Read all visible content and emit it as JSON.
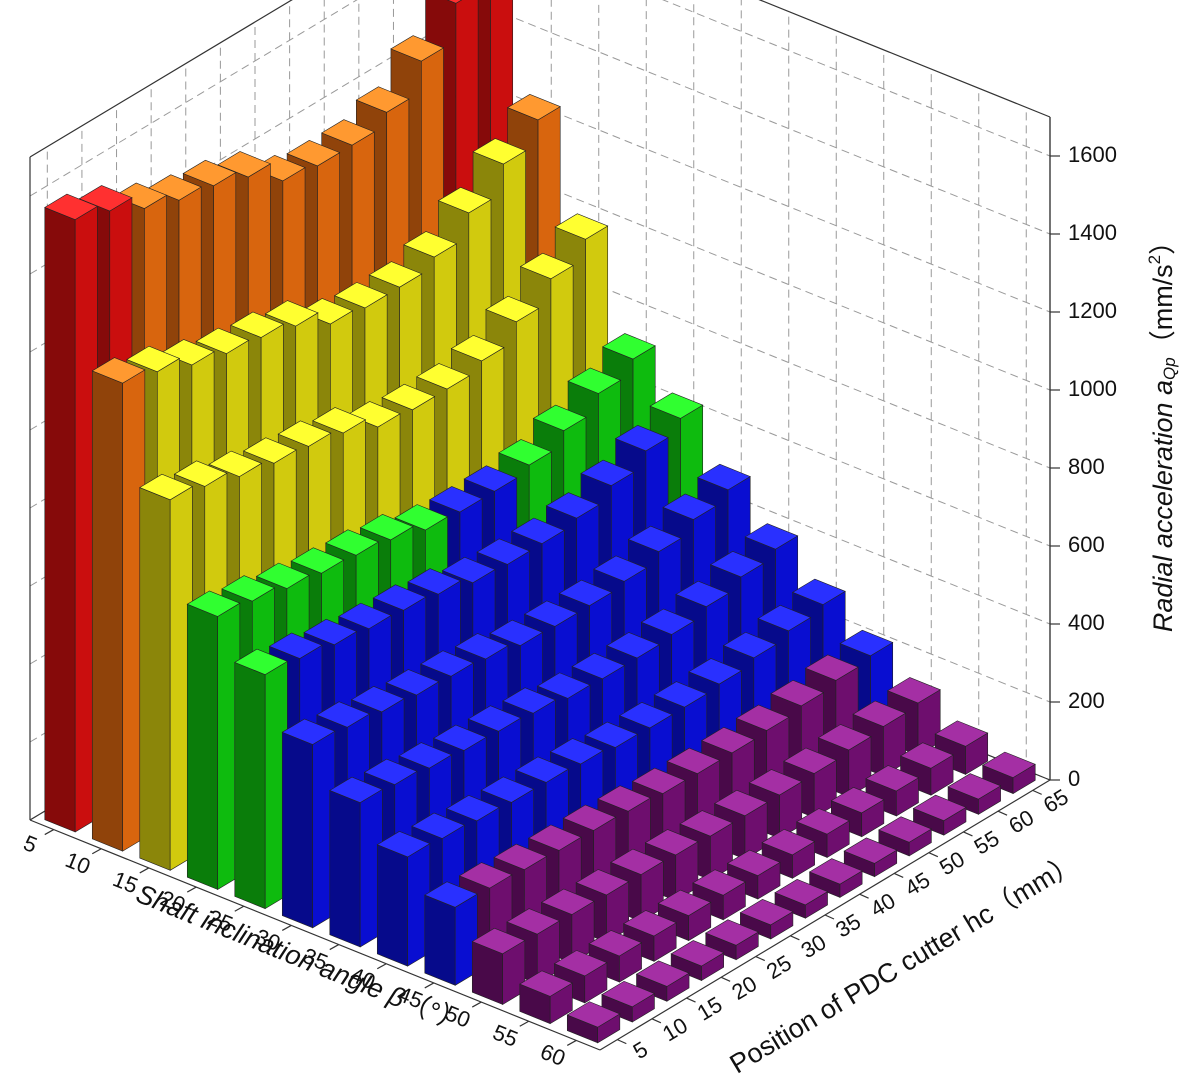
{
  "chart_data": {
    "type": "bar3d",
    "x_label": [
      "Shaft inclination angle ",
      "β",
      "（°）"
    ],
    "y_label": "Position of PDC cutter hc（mm）",
    "z_label": [
      "Radial acceleration ",
      "a",
      "Qp",
      "（mm/s",
      "2",
      "）"
    ],
    "x": [
      5,
      10,
      15,
      20,
      25,
      30,
      35,
      40,
      45,
      50,
      55,
      60
    ],
    "y": [
      5,
      10,
      15,
      20,
      25,
      30,
      35,
      40,
      45,
      50,
      55,
      60,
      65
    ],
    "values": [
      [
        1570,
        1539,
        1492,
        1460,
        1444,
        1413,
        1350,
        1335,
        1335,
        1366,
        1444,
        1539,
        1617
      ],
      [
        1200,
        1176,
        1140,
        1116,
        1104,
        1080,
        1032,
        1020,
        1020,
        1044,
        1104,
        1176,
        1236
      ],
      [
        950,
        931,
        903,
        884,
        874,
        855,
        817,
        808,
        808,
        827,
        874,
        931,
        979
      ],
      [
        700,
        686,
        665,
        651,
        644,
        630,
        602,
        595,
        595,
        609,
        644,
        686,
        721
      ],
      [
        600,
        588,
        570,
        558,
        552,
        540,
        516,
        510,
        510,
        522,
        552,
        588,
        618
      ],
      [
        470,
        461,
        447,
        437,
        432,
        423,
        404,
        400,
        400,
        409,
        432,
        461,
        484
      ],
      [
        370,
        363,
        352,
        344,
        340,
        333,
        318,
        315,
        315,
        322,
        340,
        363,
        381
      ],
      [
        280,
        274,
        266,
        260,
        258,
        252,
        241,
        238,
        238,
        244,
        258,
        274,
        288
      ],
      [
        200,
        196,
        190,
        186,
        184,
        180,
        172,
        170,
        170,
        174,
        184,
        196,
        206
      ],
      [
        130,
        127,
        124,
        121,
        120,
        117,
        112,
        111,
        111,
        113,
        120,
        127,
        134
      ],
      [
        70,
        69,
        67,
        65,
        64,
        63,
        60,
        60,
        60,
        61,
        64,
        69,
        72
      ],
      [
        40,
        39,
        38,
        37,
        37,
        36,
        34,
        34,
        34,
        35,
        37,
        39,
        41
      ]
    ],
    "colormap": {
      "bounds": [
        200,
        600,
        800,
        1200,
        1500
      ],
      "colors": [
        "#7a0f7a",
        "#0a10e8",
        "#10d010",
        "#e8e010",
        "#f07010",
        "#e01010"
      ]
    },
    "xlim": [
      2.5,
      62.5
    ],
    "xticks": [
      5,
      10,
      15,
      20,
      25,
      30,
      35,
      40,
      45,
      50,
      55,
      60
    ],
    "ylim": [
      2.5,
      67.5
    ],
    "yticks": [
      5,
      10,
      15,
      20,
      25,
      30,
      35,
      40,
      45,
      50,
      55,
      60,
      65
    ],
    "zlim": [
      0,
      1700
    ],
    "zticks": [
      0,
      200,
      400,
      600,
      800,
      1000,
      1200,
      1400,
      1600
    ],
    "grid": true
  }
}
